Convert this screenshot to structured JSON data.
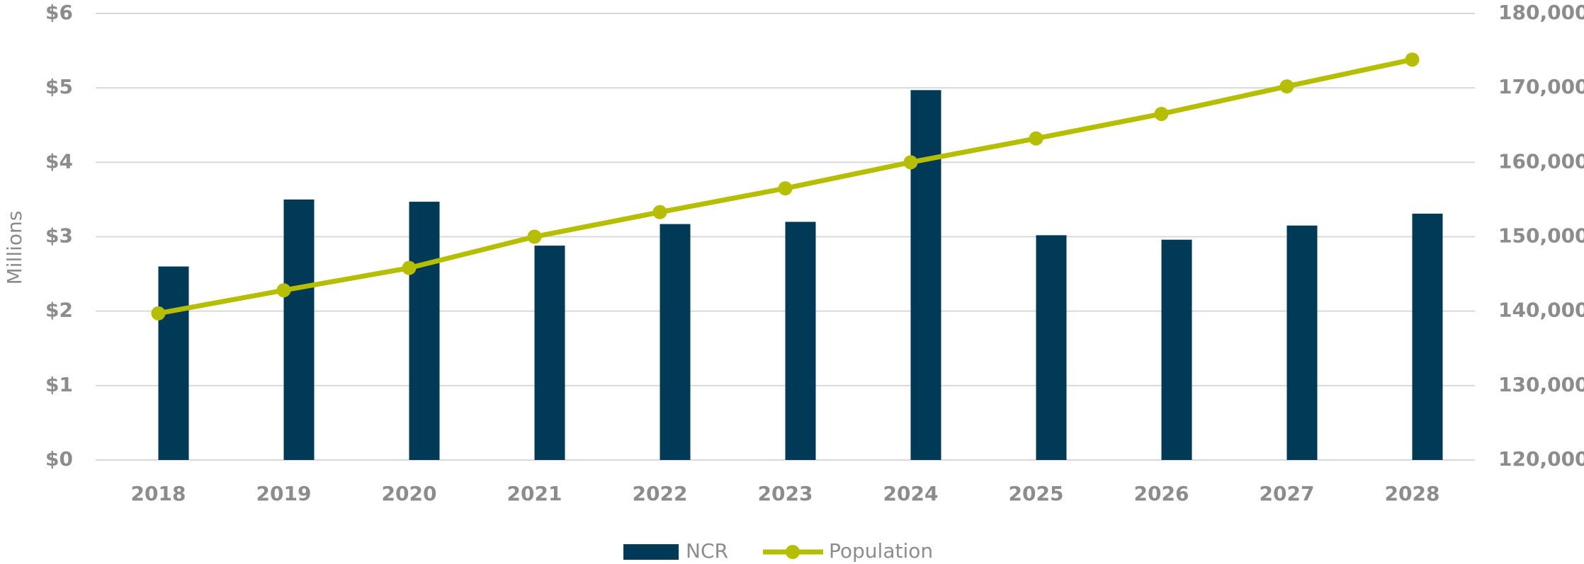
{
  "chart_data": {
    "type": "bar_line",
    "categories": [
      "2018",
      "2019",
      "2020",
      "2021",
      "2022",
      "2023",
      "2024",
      "2025",
      "2026",
      "2027",
      "2028"
    ],
    "ylabel": "Millions",
    "series": [
      {
        "name": "NCR",
        "type": "bar",
        "color": "#003a57",
        "values": [
          2.6,
          3.5,
          3.47,
          2.88,
          3.17,
          3.2,
          4.97,
          3.02,
          2.96,
          3.15,
          3.31
        ]
      },
      {
        "name": "Population",
        "type": "line",
        "axis": "y2",
        "color": "#b5be00",
        "values": [
          139700,
          142800,
          145800,
          150000,
          153300,
          156500,
          160000,
          163200,
          166500,
          170200,
          173800
        ]
      }
    ],
    "ylim": [
      0,
      6
    ],
    "yticks": [
      {
        "value": 0,
        "label": "$0"
      },
      {
        "value": 1,
        "label": "$1"
      },
      {
        "value": 2,
        "label": "$2"
      },
      {
        "value": 3,
        "label": "$3"
      },
      {
        "value": 4,
        "label": "$4"
      },
      {
        "value": 5,
        "label": "$5"
      },
      {
        "value": 6,
        "label": "$6"
      }
    ],
    "y2lim": [
      120000,
      180000
    ],
    "y2ticks": [
      {
        "value": 120000,
        "label": "120,000"
      },
      {
        "value": 130000,
        "label": "130,000"
      },
      {
        "value": 140000,
        "label": "140,000"
      },
      {
        "value": 150000,
        "label": "150,000"
      },
      {
        "value": 160000,
        "label": "160,000"
      },
      {
        "value": 170000,
        "label": "170,000"
      },
      {
        "value": 180000,
        "label": "180,000"
      }
    ],
    "grid": true,
    "legend": "bottom"
  }
}
